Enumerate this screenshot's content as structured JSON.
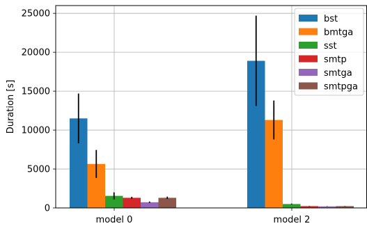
{
  "chart_data": {
    "type": "bar",
    "categories": [
      "model 0",
      "model 2"
    ],
    "ylabel": "Duration [s]",
    "xlabel": "",
    "ylim": [
      0,
      26000
    ],
    "yticks": [
      0,
      5000,
      10000,
      15000,
      20000,
      25000
    ],
    "grid": true,
    "legend_position": "top-right",
    "series": [
      {
        "name": "bst",
        "color": "#1f77b4",
        "values": [
          11500,
          18900
        ],
        "errors": [
          3200,
          5800
        ]
      },
      {
        "name": "bmtga",
        "color": "#ff7f0e",
        "values": [
          5650,
          11300
        ],
        "errors": [
          1800,
          2500
        ]
      },
      {
        "name": "sst",
        "color": "#2ca02c",
        "values": [
          1550,
          500
        ],
        "errors": [
          450,
          50
        ]
      },
      {
        "name": "smtp",
        "color": "#d62728",
        "values": [
          1300,
          230
        ],
        "errors": [
          120,
          20
        ]
      },
      {
        "name": "smtga",
        "color": "#9467bd",
        "values": [
          730,
          200
        ],
        "errors": [
          90,
          20
        ]
      },
      {
        "name": "smtpga",
        "color": "#8c564b",
        "values": [
          1300,
          230
        ],
        "errors": [
          150,
          20
        ]
      }
    ]
  }
}
